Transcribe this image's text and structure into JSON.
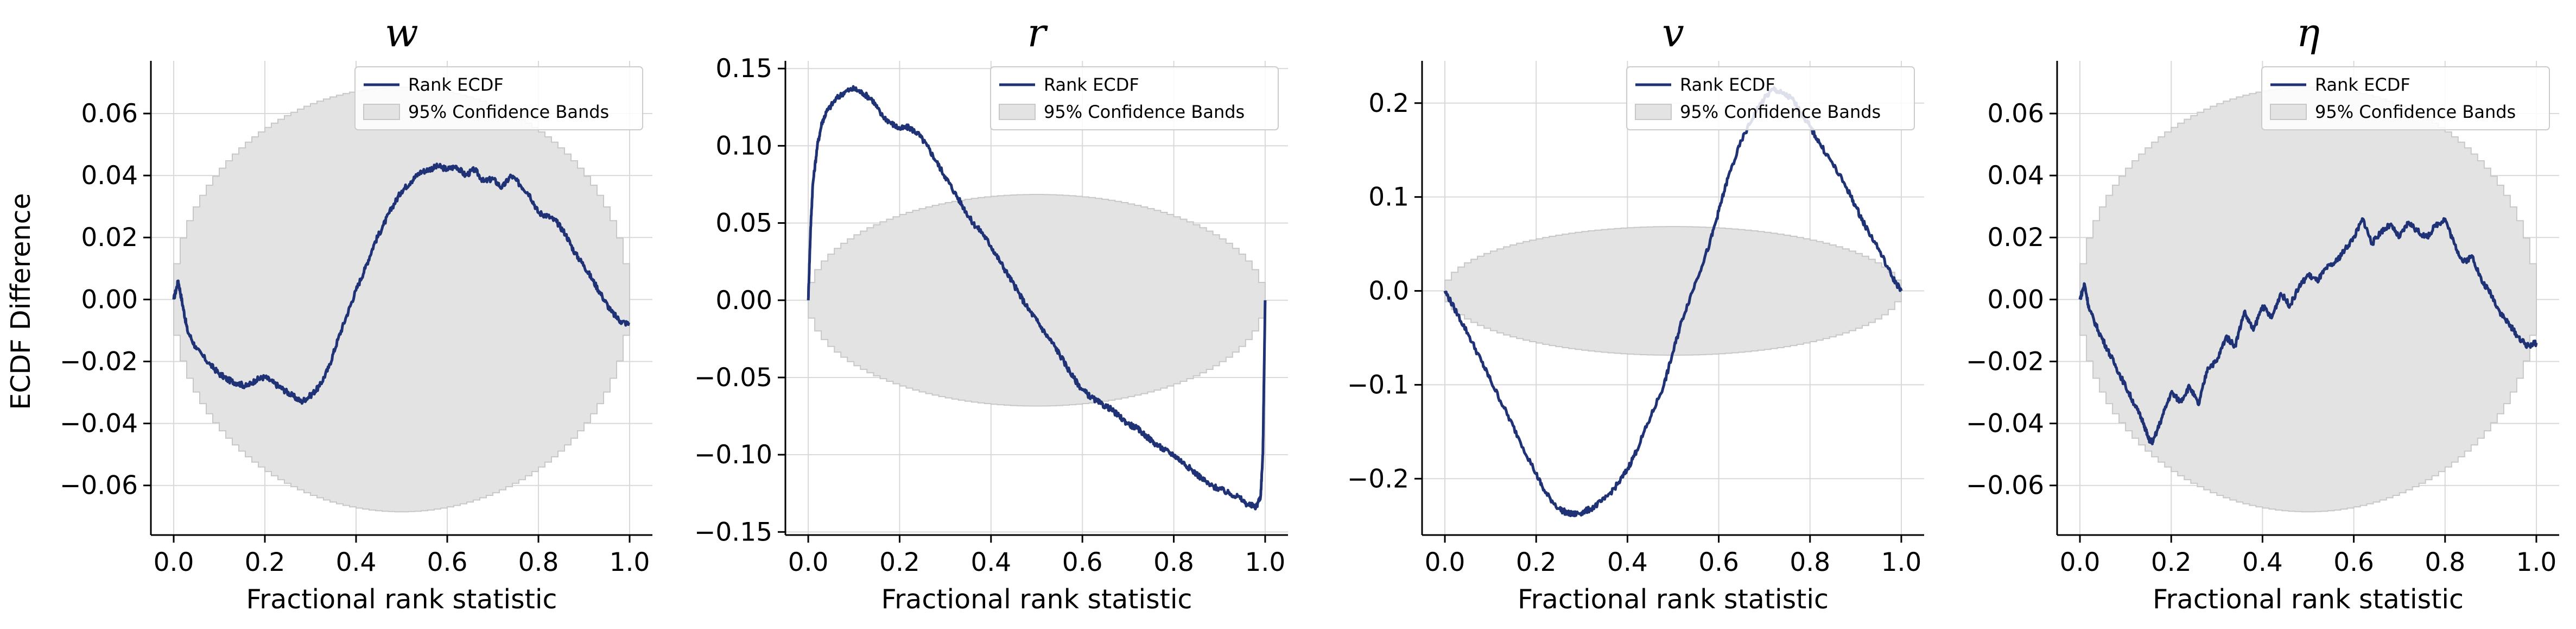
{
  "figure": {
    "ylabel": "ECDF Difference"
  },
  "chart_data": [
    {
      "type": "line",
      "title": "w",
      "xlabel": "Fractional rank statistic",
      "ylabel": "ECDF Difference",
      "xlim": [
        -0.05,
        1.05
      ],
      "ylim": [
        -0.076,
        0.077
      ],
      "xticks": [
        0.0,
        0.2,
        0.4,
        0.6,
        0.8,
        1.0
      ],
      "xtick_labels": [
        "0.0",
        "0.2",
        "0.4",
        "0.6",
        "0.8",
        "1.0"
      ],
      "yticks": [
        -0.06,
        -0.04,
        -0.02,
        0.0,
        0.02,
        0.04,
        0.06
      ],
      "ytick_labels": [
        "−0.06",
        "−0.04",
        "−0.02",
        "0.00",
        "0.02",
        "0.04",
        "0.06"
      ],
      "grid": true,
      "legend": {
        "position": "top-right",
        "entries": [
          "Rank ECDF",
          "95% Confidence Bands"
        ]
      },
      "band_halfwidth": 0.0685,
      "series": [
        {
          "name": "Rank ECDF",
          "x": [
            0.0,
            0.01,
            0.02,
            0.03,
            0.05,
            0.08,
            0.1,
            0.12,
            0.14,
            0.16,
            0.18,
            0.2,
            0.22,
            0.24,
            0.26,
            0.28,
            0.3,
            0.32,
            0.34,
            0.36,
            0.38,
            0.4,
            0.42,
            0.44,
            0.46,
            0.48,
            0.5,
            0.52,
            0.54,
            0.56,
            0.58,
            0.6,
            0.62,
            0.64,
            0.66,
            0.68,
            0.7,
            0.72,
            0.74,
            0.76,
            0.78,
            0.8,
            0.82,
            0.84,
            0.86,
            0.88,
            0.9,
            0.92,
            0.94,
            0.96,
            0.98,
            1.0
          ],
          "values": [
            0.0,
            0.006,
            -0.002,
            -0.01,
            -0.016,
            -0.021,
            -0.024,
            -0.026,
            -0.027,
            -0.028,
            -0.026,
            -0.025,
            -0.027,
            -0.029,
            -0.031,
            -0.033,
            -0.031,
            -0.028,
            -0.022,
            -0.013,
            -0.005,
            0.003,
            0.01,
            0.018,
            0.024,
            0.03,
            0.035,
            0.038,
            0.041,
            0.042,
            0.043,
            0.042,
            0.043,
            0.04,
            0.042,
            0.038,
            0.039,
            0.036,
            0.04,
            0.037,
            0.034,
            0.028,
            0.027,
            0.025,
            0.021,
            0.015,
            0.011,
            0.006,
            0.001,
            -0.004,
            -0.007,
            -0.008
          ]
        }
      ]
    },
    {
      "type": "line",
      "title": "r",
      "xlabel": "Fractional rank statistic",
      "ylabel": "",
      "xlim": [
        -0.05,
        1.05
      ],
      "ylim": [
        -0.152,
        0.155
      ],
      "xticks": [
        0.0,
        0.2,
        0.4,
        0.6,
        0.8,
        1.0
      ],
      "xtick_labels": [
        "0.0",
        "0.2",
        "0.4",
        "0.6",
        "0.8",
        "1.0"
      ],
      "yticks": [
        -0.15,
        -0.1,
        -0.05,
        0.0,
        0.05,
        0.1,
        0.15
      ],
      "ytick_labels": [
        "−0.15",
        "−0.10",
        "−0.05",
        "0.00",
        "0.05",
        "0.10",
        "0.15"
      ],
      "grid": true,
      "legend": {
        "position": "top-right",
        "entries": [
          "Rank ECDF",
          "95% Confidence Bands"
        ]
      },
      "band_halfwidth": 0.0685,
      "series": [
        {
          "name": "Rank ECDF",
          "x": [
            0.0,
            0.005,
            0.01,
            0.02,
            0.03,
            0.04,
            0.06,
            0.08,
            0.1,
            0.12,
            0.14,
            0.16,
            0.18,
            0.2,
            0.22,
            0.24,
            0.26,
            0.28,
            0.3,
            0.32,
            0.34,
            0.36,
            0.38,
            0.4,
            0.42,
            0.44,
            0.46,
            0.48,
            0.5,
            0.52,
            0.54,
            0.56,
            0.58,
            0.6,
            0.62,
            0.64,
            0.66,
            0.68,
            0.7,
            0.72,
            0.74,
            0.76,
            0.78,
            0.8,
            0.82,
            0.84,
            0.86,
            0.88,
            0.9,
            0.92,
            0.94,
            0.96,
            0.98,
            0.99,
            0.995,
            1.0
          ],
          "values": [
            0.0,
            0.045,
            0.075,
            0.1,
            0.115,
            0.122,
            0.13,
            0.135,
            0.137,
            0.134,
            0.13,
            0.12,
            0.115,
            0.111,
            0.112,
            0.108,
            0.1,
            0.09,
            0.08,
            0.07,
            0.06,
            0.05,
            0.044,
            0.035,
            0.025,
            0.015,
            0.005,
            -0.005,
            -0.013,
            -0.022,
            -0.03,
            -0.04,
            -0.05,
            -0.058,
            -0.063,
            -0.067,
            -0.07,
            -0.075,
            -0.08,
            -0.083,
            -0.088,
            -0.093,
            -0.097,
            -0.1,
            -0.105,
            -0.11,
            -0.115,
            -0.12,
            -0.122,
            -0.125,
            -0.127,
            -0.132,
            -0.134,
            -0.127,
            -0.1,
            0.0
          ]
        }
      ]
    },
    {
      "type": "line",
      "title": "v",
      "xlabel": "Fractional rank statistic",
      "ylabel": "",
      "xlim": [
        -0.05,
        1.05
      ],
      "ylim": [
        -0.26,
        0.245
      ],
      "xticks": [
        0.0,
        0.2,
        0.4,
        0.6,
        0.8,
        1.0
      ],
      "xtick_labels": [
        "0.0",
        "0.2",
        "0.4",
        "0.6",
        "0.8",
        "1.0"
      ],
      "yticks": [
        -0.2,
        -0.1,
        0.0,
        0.1,
        0.2
      ],
      "ytick_labels": [
        "−0.2",
        "−0.1",
        "0.0",
        "0.1",
        "0.2"
      ],
      "grid": true,
      "legend": {
        "position": "top-right",
        "entries": [
          "Rank ECDF",
          "95% Confidence Bands"
        ]
      },
      "band_halfwidth": 0.0685,
      "series": [
        {
          "name": "Rank ECDF",
          "x": [
            0.0,
            0.02,
            0.05,
            0.08,
            0.1,
            0.13,
            0.16,
            0.2,
            0.22,
            0.25,
            0.27,
            0.28,
            0.3,
            0.32,
            0.35,
            0.38,
            0.4,
            0.42,
            0.45,
            0.48,
            0.5,
            0.52,
            0.55,
            0.58,
            0.6,
            0.62,
            0.65,
            0.68,
            0.7,
            0.72,
            0.74,
            0.76,
            0.78,
            0.8,
            0.82,
            0.85,
            0.88,
            0.9,
            0.92,
            0.95,
            0.98,
            1.0
          ],
          "values": [
            0.0,
            -0.018,
            -0.045,
            -0.075,
            -0.095,
            -0.125,
            -0.155,
            -0.195,
            -0.215,
            -0.232,
            -0.237,
            -0.238,
            -0.236,
            -0.232,
            -0.222,
            -0.205,
            -0.19,
            -0.17,
            -0.135,
            -0.1,
            -0.065,
            -0.03,
            0.01,
            0.05,
            0.085,
            0.12,
            0.16,
            0.19,
            0.205,
            0.215,
            0.21,
            0.205,
            0.19,
            0.175,
            0.158,
            0.135,
            0.11,
            0.09,
            0.07,
            0.045,
            0.015,
            0.0
          ]
        }
      ]
    },
    {
      "type": "line",
      "title": "η",
      "xlabel": "Fractional rank statistic",
      "ylabel": "",
      "xlim": [
        -0.05,
        1.05
      ],
      "ylim": [
        -0.076,
        0.077
      ],
      "xticks": [
        0.0,
        0.2,
        0.4,
        0.6,
        0.8,
        1.0
      ],
      "xtick_labels": [
        "0.0",
        "0.2",
        "0.4",
        "0.6",
        "0.8",
        "1.0"
      ],
      "yticks": [
        -0.06,
        -0.04,
        -0.02,
        0.0,
        0.02,
        0.04,
        0.06
      ],
      "ytick_labels": [
        "−0.06",
        "−0.04",
        "−0.02",
        "0.00",
        "0.02",
        "0.04",
        "0.06"
      ],
      "grid": true,
      "legend": {
        "position": "top-right",
        "entries": [
          "Rank ECDF",
          "95% Confidence Bands"
        ]
      },
      "band_halfwidth": 0.0685,
      "series": [
        {
          "name": "Rank ECDF",
          "x": [
            0.0,
            0.01,
            0.02,
            0.04,
            0.06,
            0.08,
            0.1,
            0.12,
            0.14,
            0.15,
            0.16,
            0.18,
            0.2,
            0.22,
            0.24,
            0.26,
            0.28,
            0.3,
            0.32,
            0.34,
            0.36,
            0.38,
            0.4,
            0.42,
            0.44,
            0.46,
            0.48,
            0.5,
            0.52,
            0.54,
            0.56,
            0.58,
            0.6,
            0.62,
            0.64,
            0.66,
            0.68,
            0.7,
            0.72,
            0.74,
            0.76,
            0.78,
            0.8,
            0.82,
            0.84,
            0.86,
            0.88,
            0.9,
            0.92,
            0.94,
            0.96,
            0.98,
            1.0
          ],
          "values": [
            0.0,
            0.005,
            -0.003,
            -0.01,
            -0.016,
            -0.022,
            -0.028,
            -0.034,
            -0.04,
            -0.045,
            -0.046,
            -0.038,
            -0.03,
            -0.033,
            -0.028,
            -0.034,
            -0.022,
            -0.02,
            -0.012,
            -0.015,
            -0.004,
            -0.01,
            -0.002,
            -0.006,
            0.002,
            -0.002,
            0.004,
            0.008,
            0.006,
            0.01,
            0.012,
            0.016,
            0.02,
            0.026,
            0.018,
            0.022,
            0.024,
            0.02,
            0.025,
            0.022,
            0.02,
            0.024,
            0.026,
            0.018,
            0.012,
            0.014,
            0.006,
            0.002,
            -0.004,
            -0.008,
            -0.012,
            -0.015,
            -0.014
          ]
        }
      ]
    }
  ]
}
